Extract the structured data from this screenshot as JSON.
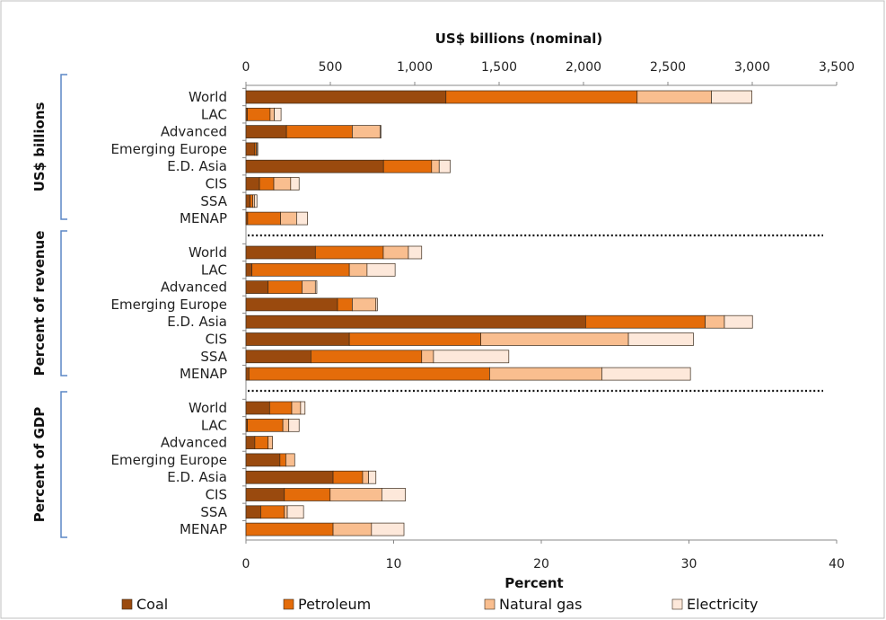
{
  "chart_data": {
    "type": "bar",
    "orientation": "horizontal",
    "stacked": true,
    "top_axis": {
      "title": "US$ billions (nominal)",
      "range": [
        0,
        3500
      ],
      "ticks": [
        "0",
        "500",
        "1,000",
        "1,500",
        "2,000",
        "2,500",
        "3,000",
        "3,500"
      ]
    },
    "bottom_axis": {
      "title": "Percent",
      "range": [
        0,
        40
      ],
      "ticks": [
        "0",
        "10",
        "20",
        "30",
        "40"
      ]
    },
    "legend": {
      "placement": "bottom",
      "entries": [
        "Coal",
        "Petroleum",
        "Natural gas",
        "Electricity"
      ]
    },
    "colors": [
      "#9A4A0E",
      "#E46C0A",
      "#F9BE8F",
      "#FDE8DA"
    ],
    "categories": [
      "World",
      "LAC",
      "Advanced",
      "Emerging Europe",
      "E.D. Asia",
      "CIS",
      "SSA",
      "MENAP"
    ],
    "groups": [
      {
        "label": "US$ billions",
        "axis": "top",
        "values": [
          [
            1185,
            1133,
            440,
            240
          ],
          [
            8,
            135,
            25,
            40
          ],
          [
            240,
            390,
            165,
            5
          ],
          [
            50,
            10,
            5,
            5
          ],
          [
            815,
            285,
            45,
            65
          ],
          [
            80,
            85,
            100,
            50
          ],
          [
            25,
            15,
            10,
            15
          ],
          [
            10,
            195,
            95,
            65
          ]
        ]
      },
      {
        "label": "Percent of revenue",
        "axis": "bottom",
        "values": [
          [
            4.7,
            4.6,
            1.7,
            0.9
          ],
          [
            0.4,
            6.6,
            1.2,
            1.9
          ],
          [
            1.5,
            2.3,
            0.9,
            0.1
          ],
          [
            6.2,
            1.0,
            1.6,
            0.1
          ],
          [
            23.0,
            8.1,
            1.3,
            1.9
          ],
          [
            7.0,
            8.9,
            10.0,
            4.4
          ],
          [
            4.4,
            7.5,
            0.8,
            5.1
          ],
          [
            0.2,
            16.3,
            7.6,
            6.0
          ]
        ]
      },
      {
        "label": "Percent of GDP",
        "axis": "bottom",
        "values": [
          [
            1.6,
            1.5,
            0.6,
            0.3
          ],
          [
            0.1,
            2.4,
            0.4,
            0.7
          ],
          [
            0.6,
            0.9,
            0.3,
            0.0
          ],
          [
            2.3,
            0.4,
            0.6,
            0.0
          ],
          [
            5.9,
            2.0,
            0.4,
            0.5
          ],
          [
            2.6,
            3.1,
            3.5,
            1.6
          ],
          [
            1.0,
            1.6,
            0.2,
            1.1
          ],
          [
            0.0,
            5.9,
            2.6,
            2.2
          ]
        ]
      }
    ]
  }
}
